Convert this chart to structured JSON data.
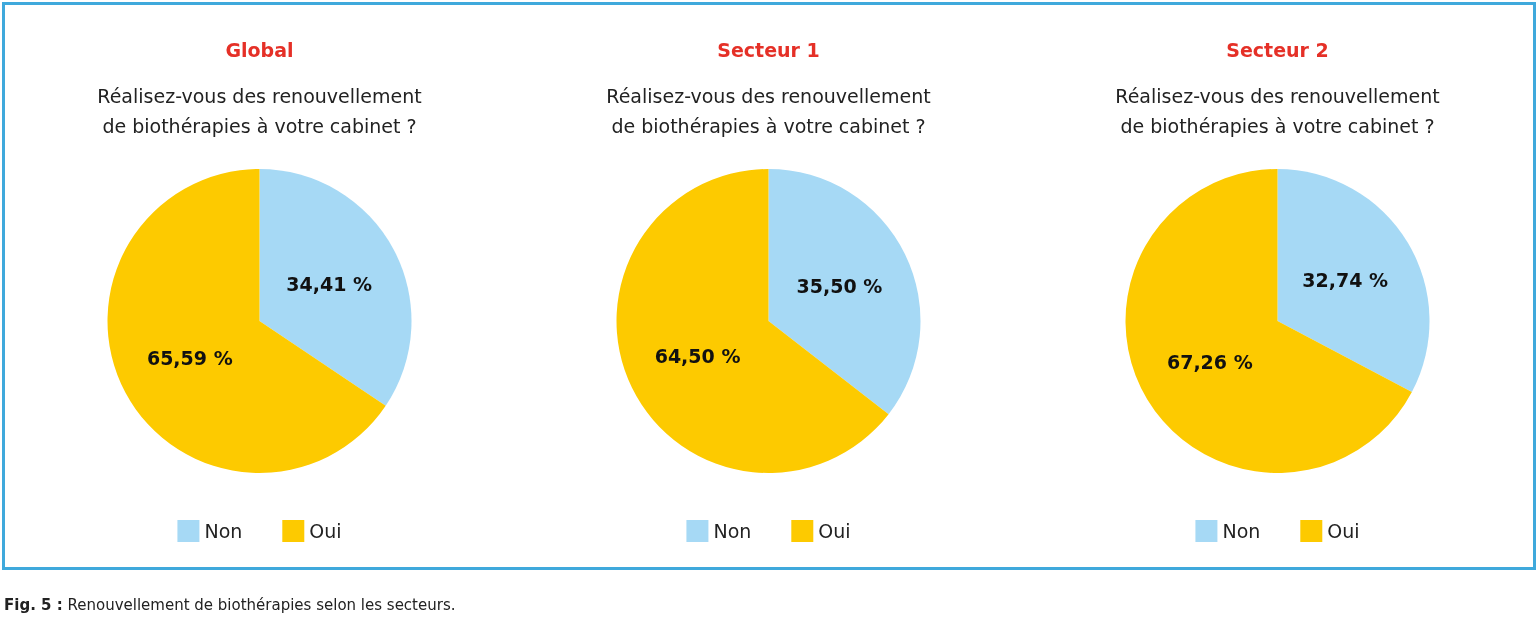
{
  "chart_data": [
    {
      "type": "pie",
      "title": "Global",
      "subtitle": "Réalisez-vous des renouvellement\nde biothérapies à votre cabinet ?",
      "categories": [
        "Non",
        "Oui"
      ],
      "values": [
        34.41,
        65.59
      ],
      "value_labels": [
        "34,41 %",
        "65,59 %"
      ],
      "colors": [
        "#a6d9f5",
        "#fdca00"
      ],
      "legend": "bottom",
      "annotations": [
        "Fig. 5 : Renouvellement de biothérapies selon les secteurs."
      ]
    },
    {
      "type": "pie",
      "title": "Secteur 1",
      "subtitle": "Réalisez-vous des renouvellement\nde biothérapies à votre cabinet ?",
      "categories": [
        "Non",
        "Oui"
      ],
      "values": [
        35.5,
        64.5
      ],
      "value_labels": [
        "35,50 %",
        "64,50 %"
      ],
      "colors": [
        "#a6d9f5",
        "#fdca00"
      ],
      "legend": "bottom"
    },
    {
      "type": "pie",
      "title": "Secteur 2",
      "subtitle": "Réalisez-vous des renouvellement\nde biothérapies à votre cabinet ?",
      "categories": [
        "Non",
        "Oui"
      ],
      "values": [
        32.74,
        67.26
      ],
      "value_labels": [
        "32,74 %",
        "67,26 %"
      ],
      "colors": [
        "#a6d9f5",
        "#fdca00"
      ],
      "legend": "bottom"
    }
  ]
}
